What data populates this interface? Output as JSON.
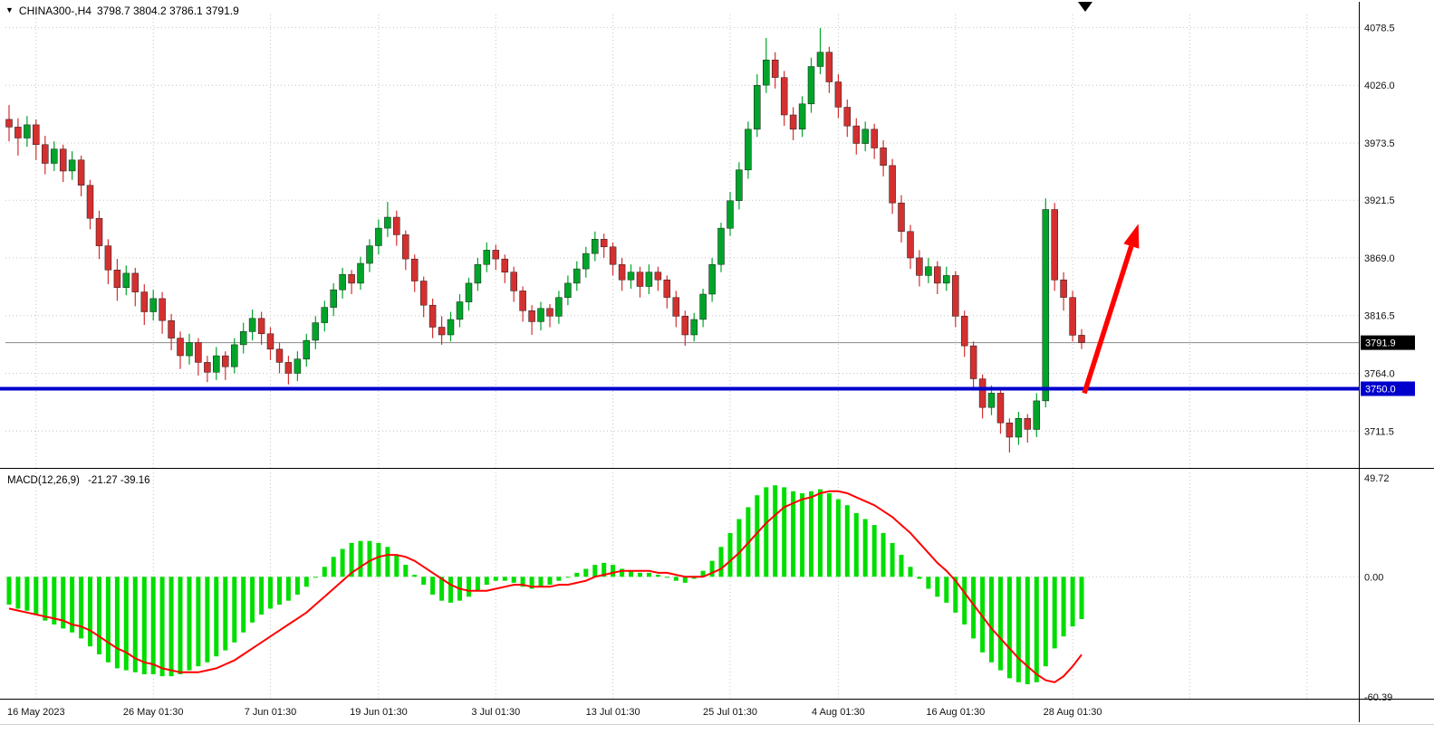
{
  "header": {
    "symbol": "CHINA300-,H4",
    "quote_text": "3798.7 3804.2 3786.1 3791.9"
  },
  "macd": {
    "name": "MACD(12,26,9)",
    "values_text": "-21.27 -39.16"
  },
  "chart_data": {
    "type": "candlestick",
    "symbol": "CHINA300-",
    "timeframe": "H4",
    "last_quote": {
      "open": 3798.7,
      "high": 3804.2,
      "low": 3786.1,
      "close": 3791.9
    },
    "price_axis": {
      "tick_labels": [
        "4078.5",
        "4026.0",
        "3973.5",
        "3921.5",
        "3869.0",
        "3816.5",
        "3764.0",
        "3711.5"
      ],
      "range": [
        3678,
        4092
      ]
    },
    "x_axis": {
      "tick_labels": [
        "16 May 2023",
        "26 May 01:30",
        "7 Jun 01:30",
        "19 Jun 01:30",
        "3 Jul 01:30",
        "13 Jul 01:30",
        "25 Jul 01:30",
        "4 Aug 01:30",
        "16 Aug 01:30",
        "28 Aug 01:30"
      ],
      "tick_candle_indices": [
        3,
        16,
        29,
        41,
        54,
        67,
        80,
        92,
        105,
        118
      ],
      "grid_candle_indices": [
        3,
        16,
        29,
        41,
        54,
        67,
        80,
        92,
        105,
        118,
        131,
        144
      ]
    },
    "current_price": {
      "value": 3791.9,
      "label": "3791.9"
    },
    "support_line": {
      "price": 3750.0,
      "label": "3750.0"
    },
    "arrow_annotation": {
      "from": {
        "candle_index": 119.3,
        "price": 3746
      },
      "to": {
        "candle_index": 125.3,
        "price": 3900
      }
    },
    "colors": {
      "bull": "#00a42a",
      "bear": "#d43030",
      "histogram": "#00dd00",
      "signal": "#ff0000",
      "support": "#0000cc",
      "grid": "#c4c4c4",
      "last_price_line": "#8a8a8a",
      "axis_text": "#111111",
      "tag_current_bg": "#000000",
      "arrow": "#ff0000"
    },
    "candles": [
      [
        3995,
        4008,
        3975,
        3988
      ],
      [
        3988,
        3996,
        3962,
        3978
      ],
      [
        3978,
        3998,
        3970,
        3990
      ],
      [
        3990,
        3995,
        3958,
        3972
      ],
      [
        3972,
        3980,
        3945,
        3955
      ],
      [
        3955,
        3975,
        3948,
        3968
      ],
      [
        3968,
        3972,
        3938,
        3948
      ],
      [
        3948,
        3966,
        3940,
        3958
      ],
      [
        3958,
        3962,
        3925,
        3935
      ],
      [
        3935,
        3940,
        3895,
        3905
      ],
      [
        3905,
        3912,
        3868,
        3880
      ],
      [
        3880,
        3886,
        3845,
        3858
      ],
      [
        3858,
        3868,
        3830,
        3842
      ],
      [
        3842,
        3862,
        3835,
        3855
      ],
      [
        3855,
        3860,
        3825,
        3838
      ],
      [
        3838,
        3845,
        3808,
        3820
      ],
      [
        3820,
        3840,
        3812,
        3832
      ],
      [
        3832,
        3838,
        3800,
        3812
      ],
      [
        3812,
        3818,
        3785,
        3796
      ],
      [
        3796,
        3802,
        3768,
        3780
      ],
      [
        3780,
        3800,
        3772,
        3792
      ],
      [
        3792,
        3796,
        3762,
        3774
      ],
      [
        3774,
        3780,
        3756,
        3765
      ],
      [
        3765,
        3788,
        3758,
        3780
      ],
      [
        3780,
        3784,
        3758,
        3770
      ],
      [
        3770,
        3796,
        3764,
        3790
      ],
      [
        3790,
        3810,
        3782,
        3802
      ],
      [
        3802,
        3822,
        3794,
        3814
      ],
      [
        3814,
        3820,
        3790,
        3800
      ],
      [
        3800,
        3806,
        3776,
        3786
      ],
      [
        3786,
        3792,
        3764,
        3774
      ],
      [
        3774,
        3780,
        3754,
        3764
      ],
      [
        3764,
        3784,
        3757,
        3777
      ],
      [
        3777,
        3800,
        3770,
        3794
      ],
      [
        3794,
        3816,
        3786,
        3810
      ],
      [
        3810,
        3830,
        3802,
        3824
      ],
      [
        3824,
        3846,
        3816,
        3840
      ],
      [
        3840,
        3860,
        3832,
        3854
      ],
      [
        3854,
        3858,
        3836,
        3846
      ],
      [
        3846,
        3870,
        3840,
        3864
      ],
      [
        3864,
        3886,
        3856,
        3880
      ],
      [
        3880,
        3904,
        3872,
        3896
      ],
      [
        3896,
        3920,
        3888,
        3906
      ],
      [
        3906,
        3912,
        3880,
        3890
      ],
      [
        3890,
        3894,
        3858,
        3868
      ],
      [
        3868,
        3872,
        3838,
        3848
      ],
      [
        3848,
        3852,
        3815,
        3826
      ],
      [
        3826,
        3832,
        3796,
        3806
      ],
      [
        3806,
        3816,
        3790,
        3799
      ],
      [
        3799,
        3820,
        3793,
        3813
      ],
      [
        3813,
        3836,
        3806,
        3829
      ],
      [
        3829,
        3851,
        3821,
        3846
      ],
      [
        3846,
        3869,
        3839,
        3863
      ],
      [
        3863,
        3883,
        3856,
        3876
      ],
      [
        3876,
        3881,
        3858,
        3868
      ],
      [
        3868,
        3872,
        3846,
        3856
      ],
      [
        3856,
        3861,
        3829,
        3839
      ],
      [
        3839,
        3843,
        3811,
        3821
      ],
      [
        3821,
        3826,
        3799,
        3811
      ],
      [
        3811,
        3829,
        3803,
        3823
      ],
      [
        3823,
        3827,
        3806,
        3816
      ],
      [
        3816,
        3839,
        3809,
        3833
      ],
      [
        3833,
        3853,
        3826,
        3846
      ],
      [
        3846,
        3866,
        3839,
        3859
      ],
      [
        3859,
        3879,
        3851,
        3873
      ],
      [
        3873,
        3893,
        3866,
        3886
      ],
      [
        3886,
        3891,
        3869,
        3879
      ],
      [
        3879,
        3883,
        3853,
        3863
      ],
      [
        3863,
        3869,
        3839,
        3849
      ],
      [
        3849,
        3863,
        3841,
        3856
      ],
      [
        3856,
        3861,
        3833,
        3843
      ],
      [
        3843,
        3863,
        3836,
        3856
      ],
      [
        3856,
        3861,
        3839,
        3849
      ],
      [
        3849,
        3853,
        3823,
        3833
      ],
      [
        3833,
        3839,
        3806,
        3816
      ],
      [
        3816,
        3821,
        3789,
        3799
      ],
      [
        3799,
        3819,
        3793,
        3813
      ],
      [
        3813,
        3841,
        3806,
        3836
      ],
      [
        3836,
        3869,
        3829,
        3863
      ],
      [
        3863,
        3901,
        3856,
        3896
      ],
      [
        3896,
        3929,
        3889,
        3921
      ],
      [
        3921,
        3956,
        3913,
        3949
      ],
      [
        3949,
        3993,
        3941,
        3986
      ],
      [
        3986,
        4036,
        3979,
        4026
      ],
      [
        4026,
        4069,
        4019,
        4049
      ],
      [
        4049,
        4056,
        4023,
        4033
      ],
      [
        4033,
        4039,
        3989,
        3999
      ],
      [
        3999,
        4006,
        3976,
        3986
      ],
      [
        3986,
        4016,
        3979,
        4009
      ],
      [
        4009,
        4051,
        4001,
        4043
      ],
      [
        4043,
        4078,
        4036,
        4056
      ],
      [
        4056,
        4061,
        4019,
        4029
      ],
      [
        4029,
        4036,
        3996,
        4006
      ],
      [
        4006,
        4013,
        3979,
        3989
      ],
      [
        3989,
        3996,
        3963,
        3973
      ],
      [
        3973,
        3993,
        3966,
        3986
      ],
      [
        3986,
        3991,
        3959,
        3969
      ],
      [
        3969,
        3976,
        3943,
        3953
      ],
      [
        3953,
        3959,
        3909,
        3919
      ],
      [
        3919,
        3926,
        3883,
        3893
      ],
      [
        3893,
        3899,
        3859,
        3869
      ],
      [
        3869,
        3876,
        3843,
        3853
      ],
      [
        3853,
        3869,
        3846,
        3861
      ],
      [
        3861,
        3866,
        3836,
        3846
      ],
      [
        3846,
        3861,
        3839,
        3853
      ],
      [
        3853,
        3857,
        3806,
        3816
      ],
      [
        3816,
        3821,
        3779,
        3789
      ],
      [
        3789,
        3793,
        3749,
        3759
      ],
      [
        3759,
        3763,
        3723,
        3733
      ],
      [
        3733,
        3753,
        3726,
        3746
      ],
      [
        3746,
        3749,
        3709,
        3719
      ],
      [
        3719,
        3723,
        3692,
        3706
      ],
      [
        3706,
        3729,
        3699,
        3723
      ],
      [
        3723,
        3727,
        3701,
        3713
      ],
      [
        3713,
        3746,
        3706,
        3739
      ],
      [
        3739,
        3923,
        3733,
        3913
      ],
      [
        3913,
        3919,
        3839,
        3849
      ],
      [
        3849,
        3856,
        3821,
        3833
      ],
      [
        3833,
        3839,
        3793,
        3798.7
      ],
      [
        3798.7,
        3804.2,
        3786.1,
        3791.9
      ]
    ],
    "macd_indicator": {
      "type": "macd",
      "main_value": -21.27,
      "signal_value": -39.16,
      "axis_tick_labels": [
        "49.72",
        "0.00",
        "-60.39"
      ],
      "range": [
        -60.39,
        49.72
      ],
      "histogram": [
        -14,
        -16,
        -17,
        -19,
        -22,
        -24,
        -26,
        -28,
        -31,
        -35,
        -39,
        -43,
        -46,
        -47,
        -48,
        -49,
        -49,
        -50,
        -50,
        -49,
        -47,
        -45,
        -43,
        -40,
        -37,
        -33,
        -28,
        -23,
        -19,
        -16,
        -14,
        -12,
        -9,
        -5,
        0,
        5,
        10,
        14,
        17,
        18,
        18,
        17,
        15,
        11,
        6,
        1,
        -4,
        -9,
        -12,
        -13,
        -12,
        -10,
        -7,
        -4,
        -2,
        -2,
        -3,
        -5,
        -6,
        -5,
        -4,
        -2,
        0,
        2,
        4,
        6,
        7,
        6,
        4,
        3,
        2,
        2,
        1,
        0,
        -2,
        -3,
        -1,
        3,
        8,
        15,
        22,
        29,
        35,
        41,
        45,
        46,
        45,
        43,
        42,
        43,
        44,
        42,
        39,
        36,
        32,
        29,
        26,
        22,
        17,
        11,
        5,
        -1,
        -6,
        -10,
        -13,
        -18,
        -24,
        -31,
        -38,
        -43,
        -47,
        -51,
        -53,
        -54,
        -53,
        -45,
        -36,
        -30,
        -25,
        -21.27
      ],
      "signal": [
        -16,
        -17,
        -18,
        -19,
        -20,
        -21,
        -22,
        -24,
        -25,
        -27,
        -30,
        -33,
        -36,
        -38,
        -41,
        -43,
        -44,
        -46,
        -47,
        -48,
        -48,
        -48,
        -47,
        -46,
        -44,
        -42,
        -39,
        -36,
        -33,
        -30,
        -27,
        -24,
        -21,
        -18,
        -14,
        -10,
        -6,
        -2,
        2,
        5,
        8,
        10,
        11,
        11,
        10,
        8,
        5,
        2,
        -1,
        -4,
        -6,
        -7,
        -7,
        -7,
        -6,
        -5,
        -4,
        -4,
        -5,
        -5,
        -5,
        -4,
        -4,
        -3,
        -2,
        0,
        1,
        2,
        3,
        3,
        3,
        3,
        2,
        2,
        1,
        0,
        0,
        0,
        2,
        4,
        8,
        12,
        17,
        22,
        27,
        31,
        35,
        37,
        39,
        40,
        42,
        43,
        43,
        42,
        40,
        38,
        36,
        33,
        30,
        26,
        22,
        17,
        12,
        7,
        3,
        -2,
        -8,
        -14,
        -20,
        -26,
        -31,
        -36,
        -41,
        -45,
        -49,
        -52,
        -53,
        -50,
        -45,
        -39.16
      ]
    }
  }
}
